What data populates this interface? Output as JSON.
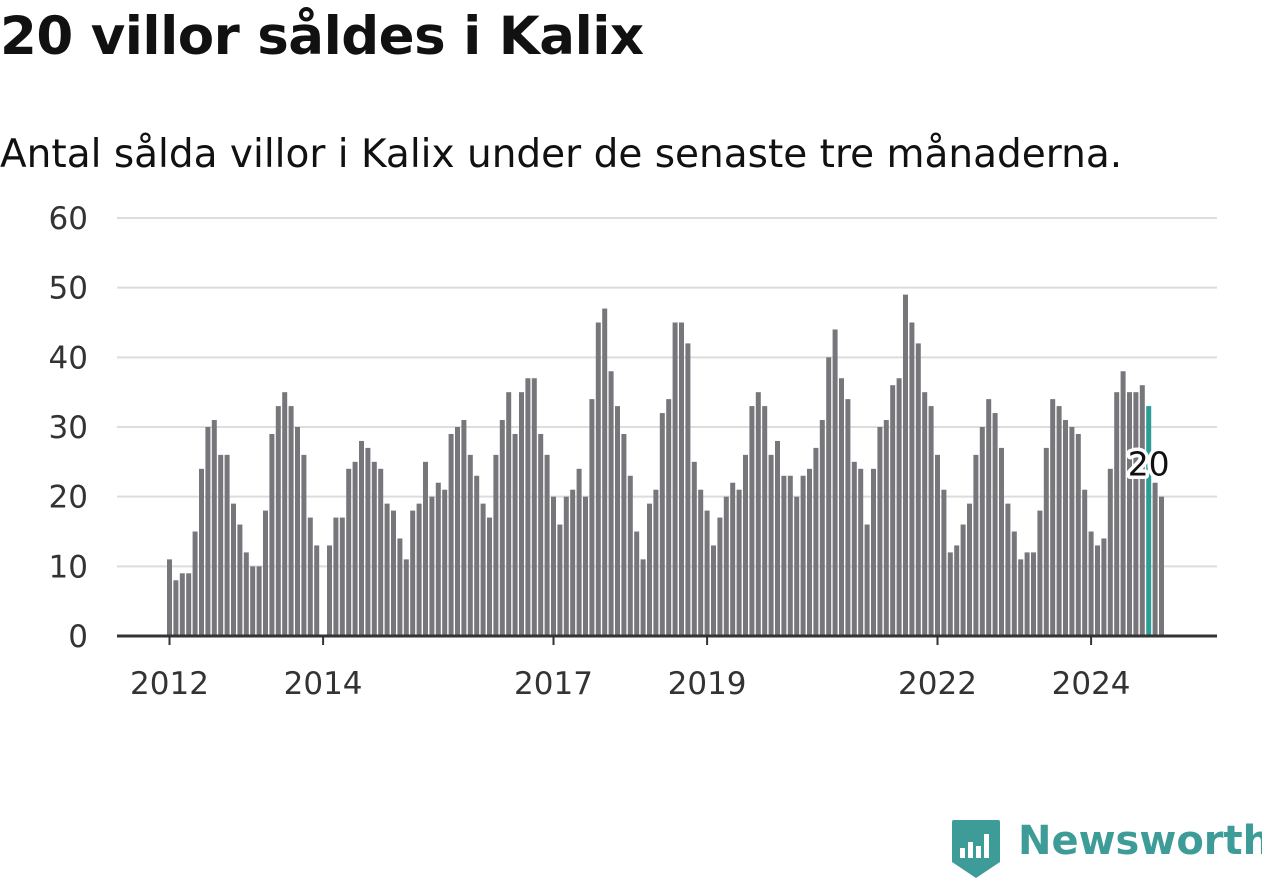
{
  "title": "20 villor såldes i Kalix",
  "subtitle": "Antal sålda villor i Kalix under de senaste tre månaderna.",
  "brand": {
    "name": "Newsworthy",
    "color": "#3e9c98",
    "icon": "newsworthy-logo-icon"
  },
  "colors": {
    "bar": "#77767b",
    "highlight": "#2a9d94",
    "grid": "#dddddd",
    "axis": "#333333"
  },
  "chart_data": {
    "type": "bar",
    "title": "20 villor såldes i Kalix",
    "subtitle": "Antal sålda villor i Kalix under de senaste tre månaderna.",
    "xlabel": "",
    "ylabel": "",
    "ylim": [
      0,
      60
    ],
    "yticks": [
      0,
      10,
      20,
      30,
      40,
      50,
      60
    ],
    "grid": true,
    "x_start": "2012-01",
    "frequency": "monthly",
    "x_tick_labels": [
      {
        "label": "2012",
        "month": "2012-01"
      },
      {
        "label": "2014",
        "month": "2014-01"
      },
      {
        "label": "2017",
        "month": "2017-01"
      },
      {
        "label": "2019",
        "month": "2019-01"
      },
      {
        "label": "2022",
        "month": "2022-01"
      },
      {
        "label": "2024",
        "month": "2024-01"
      }
    ],
    "values": [
      11,
      8,
      9,
      9,
      15,
      24,
      30,
      31,
      26,
      26,
      19,
      16,
      12,
      10,
      10,
      18,
      29,
      33,
      35,
      33,
      30,
      26,
      17,
      13,
      null,
      13,
      17,
      17,
      24,
      25,
      28,
      27,
      25,
      24,
      19,
      18,
      14,
      11,
      18,
      19,
      25,
      20,
      22,
      21,
      29,
      30,
      31,
      26,
      23,
      19,
      17,
      26,
      31,
      35,
      29,
      35,
      37,
      37,
      29,
      26,
      20,
      16,
      20,
      21,
      24,
      20,
      34,
      45,
      47,
      38,
      33,
      29,
      23,
      15,
      11,
      19,
      21,
      32,
      34,
      45,
      45,
      42,
      25,
      21,
      18,
      13,
      17,
      20,
      22,
      21,
      26,
      33,
      35,
      33,
      26,
      28,
      23,
      23,
      20,
      23,
      24,
      27,
      31,
      40,
      44,
      37,
      34,
      25,
      24,
      16,
      24,
      30,
      31,
      36,
      37,
      49,
      45,
      42,
      35,
      33,
      26,
      21,
      12,
      13,
      16,
      19,
      26,
      30,
      34,
      32,
      27,
      19,
      15,
      11,
      12,
      12,
      18,
      27,
      34,
      33,
      31,
      30,
      29,
      21,
      15,
      13,
      14,
      24,
      35,
      38,
      35,
      35,
      36,
      33,
      22,
      20
    ],
    "highlight": {
      "value": 20,
      "label": "20",
      "month": "2024-10"
    }
  }
}
